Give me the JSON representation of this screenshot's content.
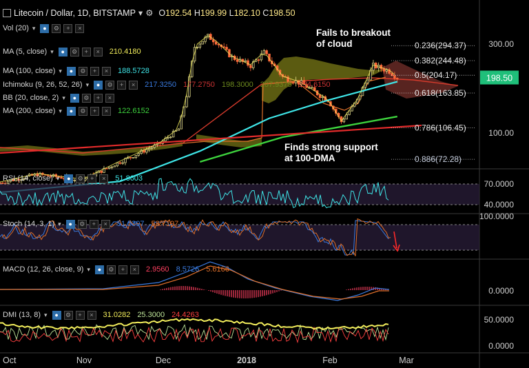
{
  "header": {
    "title": "Litecoin / Dollar, 1D, BITSTAMP",
    "ohlc": [
      {
        "k": "O",
        "v": "192.54"
      },
      {
        "k": "H",
        "v": "199.99"
      },
      {
        "k": "L",
        "v": "182.10"
      },
      {
        "k": "C",
        "v": "198.50"
      }
    ]
  },
  "indicators": {
    "price": [
      {
        "label": "Vol (20)",
        "values": []
      },
      {
        "label": "MA (5, close)",
        "values": [
          {
            "text": "210.4180",
            "color": "#f4ef5c"
          }
        ]
      },
      {
        "label": "MA (100, close)",
        "values": [
          {
            "text": "188.5728",
            "color": "#3fe6e8"
          }
        ]
      },
      {
        "label": "Ichimoku (9, 26, 52, 26)",
        "values": [
          {
            "text": "217.3250",
            "color": "#3a7be0"
          },
          {
            "text": "177.2750",
            "color": "#cc3333"
          },
          {
            "text": "198.3000",
            "color": "#6e8a1e"
          },
          {
            "text": "207.9375",
            "color": "#6e8a1e"
          },
          {
            "text": "254.6150",
            "color": "#cc3333"
          }
        ]
      },
      {
        "label": "BB (20, close, 2)",
        "values": []
      },
      {
        "label": "MA (200, close)",
        "values": [
          {
            "text": "122.6152",
            "color": "#3ed43e"
          }
        ]
      }
    ],
    "rsi": {
      "label": "RSI (14, close)",
      "values": [
        {
          "text": "51.8603",
          "color": "#3fe6e8"
        }
      ]
    },
    "stoch": {
      "label": "Stoch (14, 3, 1)",
      "values": [
        {
          "text": "51.5307",
          "color": "#3a7be0"
        },
        {
          "text": "53.7197",
          "color": "#e0702a"
        }
      ]
    },
    "macd": {
      "label": "MACD (12, 26, close, 9)",
      "values": [
        {
          "text": "2.9560",
          "color": "#ff4060"
        },
        {
          "text": "8.5726",
          "color": "#3a7be0"
        },
        {
          "text": "5.6166",
          "color": "#e0702a"
        }
      ]
    },
    "dmi": {
      "label": "DMI (13, 8)",
      "values": [
        {
          "text": "31.0282",
          "color": "#f4ef5c"
        },
        {
          "text": "25.3000",
          "color": "#bfe69a"
        },
        {
          "text": "24.4263",
          "color": "#ff4040"
        }
      ]
    }
  },
  "annotations": {
    "top": [
      "Fails to breakout",
      "of cloud"
    ],
    "bottom": [
      "Finds strong support",
      "at 100-DMA"
    ]
  },
  "fib_levels": [
    {
      "label": "0.236(294.37)",
      "price": 294.37,
      "color": "#e8e8e8"
    },
    {
      "label": "0.382(244.48)",
      "price": 244.48,
      "color": "#e8e8e8"
    },
    {
      "label": "0.5(204.17)",
      "price": 204.17,
      "color": "#e8e8e8"
    },
    {
      "label": "0.618(163.85)",
      "price": 163.85,
      "color": "#e8e8e8"
    },
    {
      "label": "0.786(106.45)",
      "price": 106.45,
      "color": "#e8e8e8"
    },
    {
      "label": "0.886(72.28)",
      "price": 72.28,
      "color": "#c8d0e0"
    }
  ],
  "current_price": {
    "label": "198.50",
    "value": 198.5,
    "color": "#1fbf7a"
  },
  "chart_data": {
    "type": "candlestick",
    "symbol": "Litecoin / Dollar",
    "interval": "1D",
    "exchange": "BITSTAMP",
    "x_ticks": [
      "Oct",
      "Nov",
      "Dec",
      "2018",
      "Feb",
      "Mar"
    ],
    "y_ticks": [
      "300.00",
      "100.00"
    ],
    "y_scale": "log",
    "ohlc_close_approx": [
      {
        "date": "2017-10-01",
        "close": 54
      },
      {
        "date": "2017-10-15",
        "close": 60
      },
      {
        "date": "2017-11-01",
        "close": 56
      },
      {
        "date": "2017-11-15",
        "close": 70
      },
      {
        "date": "2017-11-30",
        "close": 88
      },
      {
        "date": "2017-12-07",
        "close": 105
      },
      {
        "date": "2017-12-10",
        "close": 160
      },
      {
        "date": "2017-12-13",
        "close": 290
      },
      {
        "date": "2017-12-18",
        "close": 330
      },
      {
        "date": "2017-12-21",
        "close": 310
      },
      {
        "date": "2017-12-27",
        "close": 255
      },
      {
        "date": "2018-01-03",
        "close": 230
      },
      {
        "date": "2018-01-08",
        "close": 270
      },
      {
        "date": "2018-01-15",
        "close": 200
      },
      {
        "date": "2018-01-22",
        "close": 185
      },
      {
        "date": "2018-02-01",
        "close": 150
      },
      {
        "date": "2018-02-06",
        "close": 115
      },
      {
        "date": "2018-02-12",
        "close": 150
      },
      {
        "date": "2018-02-18",
        "close": 230
      },
      {
        "date": "2018-02-24",
        "close": 215
      },
      {
        "date": "2018-02-27",
        "close": 198.5
      }
    ],
    "ma100_approx": [
      {
        "date": "2017-10-01",
        "value": 48
      },
      {
        "date": "2017-11-15",
        "value": 55
      },
      {
        "date": "2017-12-15",
        "value": 80
      },
      {
        "date": "2018-01-10",
        "value": 120
      },
      {
        "date": "2018-02-01",
        "value": 150
      },
      {
        "date": "2018-02-27",
        "value": 188.57
      }
    ],
    "ma200_approx": [
      {
        "date": "2017-12-15",
        "value": 70
      },
      {
        "date": "2018-01-15",
        "value": 95
      },
      {
        "date": "2018-02-01",
        "value": 105
      },
      {
        "date": "2018-02-27",
        "value": 122.62
      }
    ],
    "rsi": {
      "ticks": [
        "70.0000",
        "40.0000"
      ],
      "last": 51.8603
    },
    "stoch": {
      "ticks": [
        "100.0000"
      ],
      "last": [
        51.5307,
        53.7197
      ]
    },
    "macd": {
      "ticks": [
        "0.0000"
      ],
      "last": {
        "hist": 2.956,
        "macd": 8.5726,
        "signal": 5.6166
      }
    },
    "dmi": {
      "ticks": [
        "50.0000",
        "0.0000"
      ],
      "last": {
        "adx": 31.0282,
        "plus_di": 25.3,
        "minus_di": 24.4263
      }
    }
  }
}
